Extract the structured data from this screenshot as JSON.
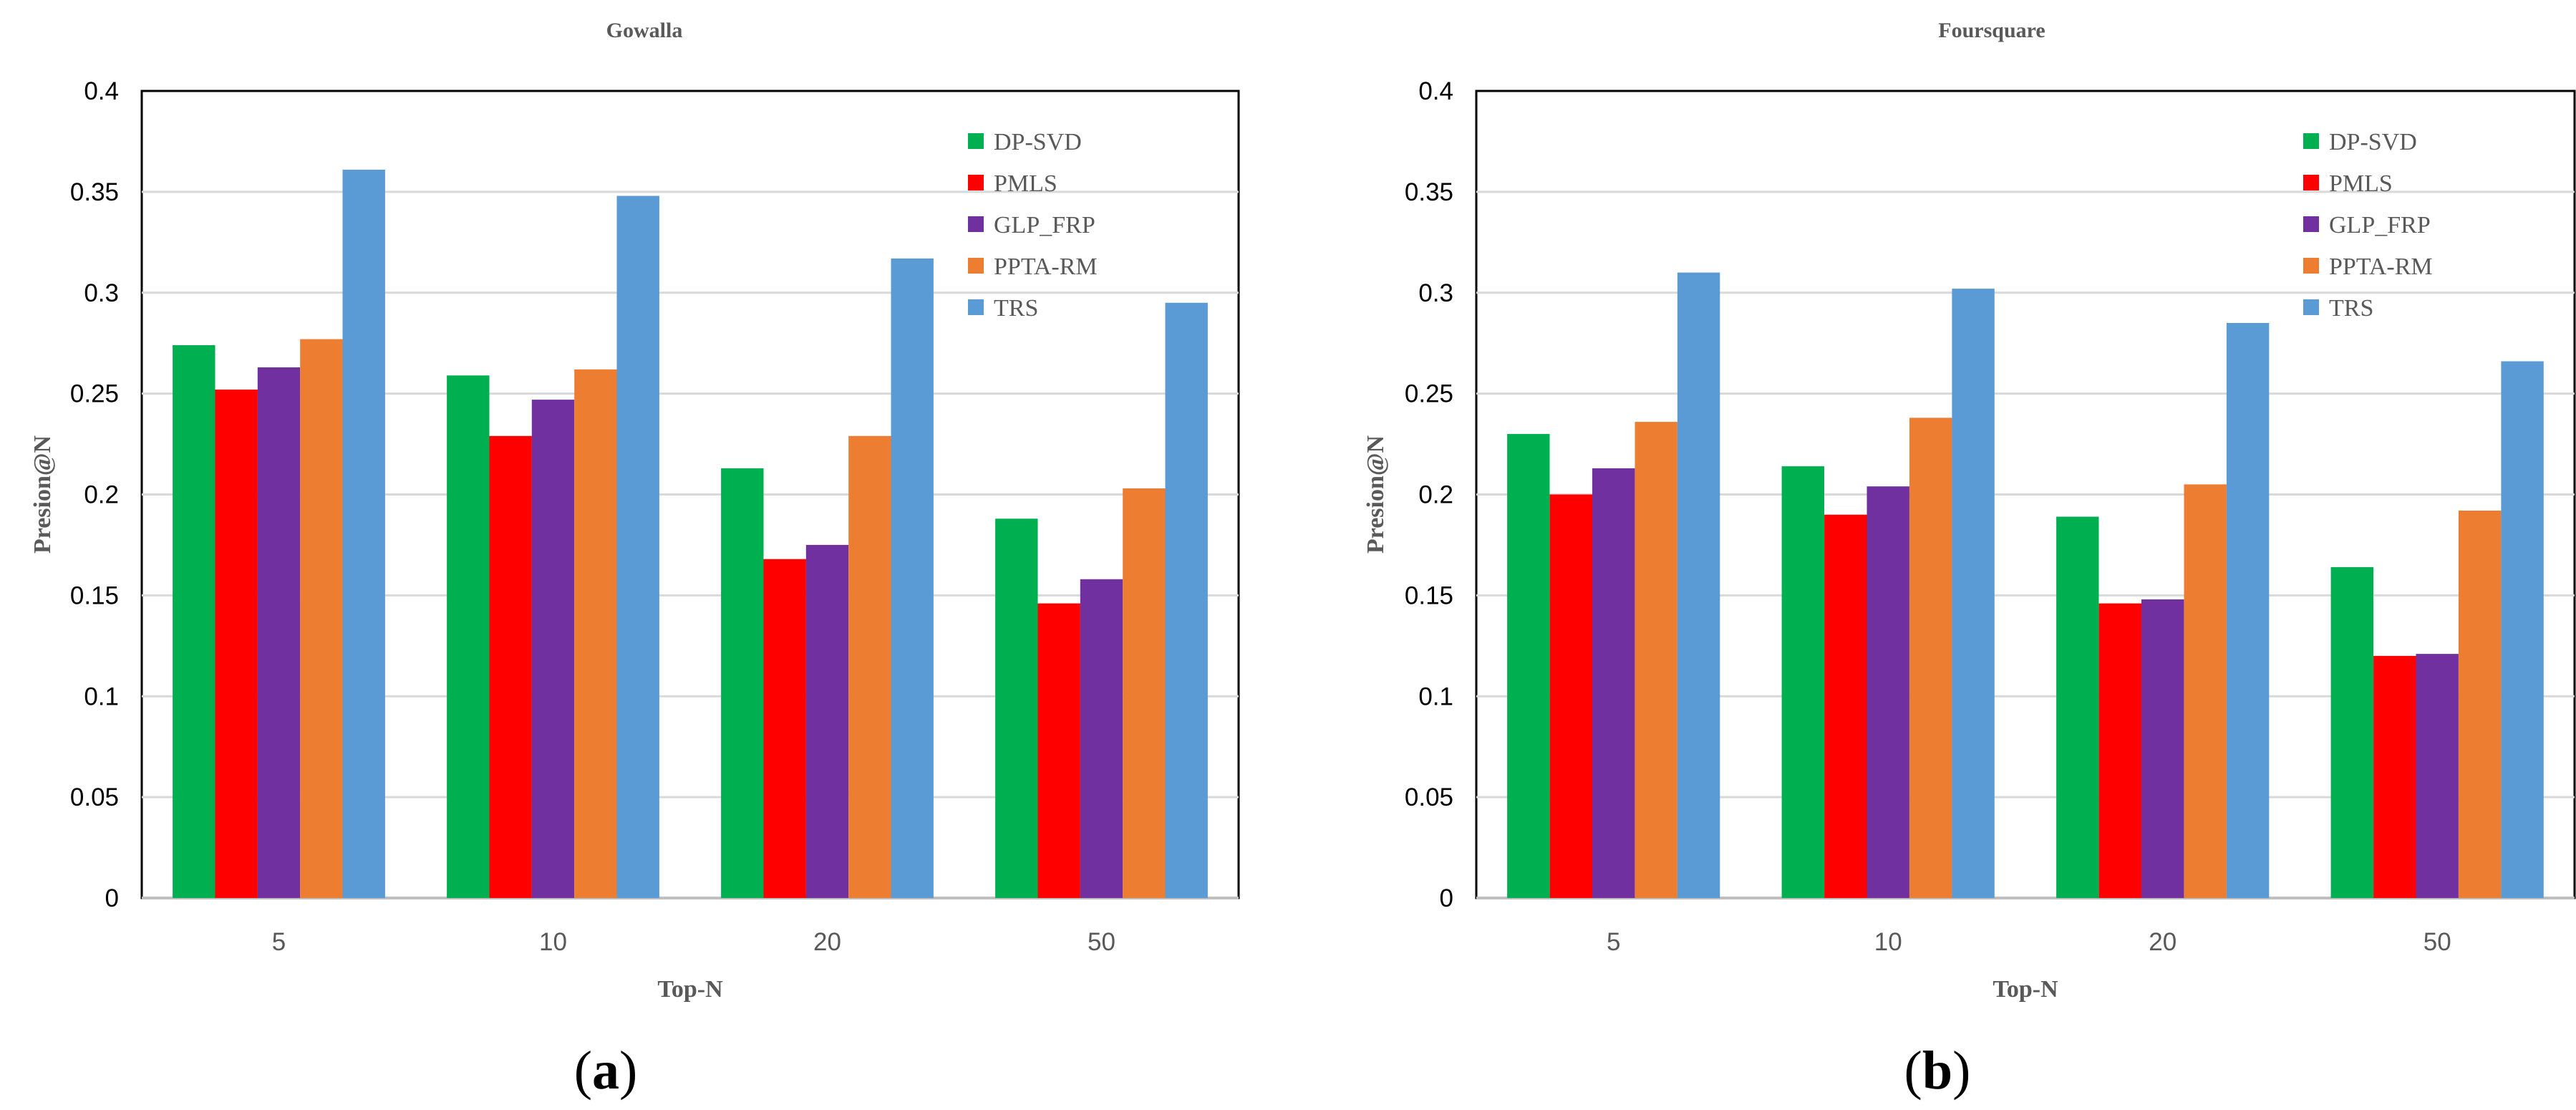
{
  "chart_data": [
    {
      "type": "bar",
      "title": "Gowalla",
      "xlabel": "Top-N",
      "ylabel": "Presion@N",
      "ylim": [
        0,
        0.4
      ],
      "yticks": [
        "0",
        "0.05",
        "0.1",
        "0.15",
        "0.2",
        "0.25",
        "0.3",
        "0.35",
        "0.4"
      ],
      "grid": true,
      "legend_position": "top-right",
      "categories": [
        "5",
        "10",
        "20",
        "50"
      ],
      "series": [
        {
          "name": "DP-SVD",
          "color": "#00b050",
          "values": [
            0.274,
            0.259,
            0.213,
            0.188
          ]
        },
        {
          "name": "PMLS",
          "color": "#ff0000",
          "values": [
            0.252,
            0.229,
            0.168,
            0.146
          ]
        },
        {
          "name": "GLP_FRP",
          "color": "#7030a0",
          "values": [
            0.263,
            0.247,
            0.175,
            0.158
          ]
        },
        {
          "name": "PPTA-RM",
          "color": "#ed7d31",
          "values": [
            0.277,
            0.262,
            0.229,
            0.203
          ]
        },
        {
          "name": "TRS",
          "color": "#5b9bd5",
          "values": [
            0.361,
            0.348,
            0.317,
            0.295
          ]
        }
      ],
      "panel_label": "a"
    },
    {
      "type": "bar",
      "title": "Foursquare",
      "xlabel": "Top-N",
      "ylabel": "Presion@N",
      "ylim": [
        0,
        0.4
      ],
      "yticks": [
        "0",
        "0.05",
        "0.1",
        "0.15",
        "0.2",
        "0.25",
        "0.3",
        "0.35",
        "0.4"
      ],
      "grid": true,
      "legend_position": "top-right",
      "categories": [
        "5",
        "10",
        "20",
        "50"
      ],
      "series": [
        {
          "name": "DP-SVD",
          "color": "#00b050",
          "values": [
            0.23,
            0.214,
            0.189,
            0.164
          ]
        },
        {
          "name": "PMLS",
          "color": "#ff0000",
          "values": [
            0.2,
            0.19,
            0.146,
            0.12
          ]
        },
        {
          "name": "GLP_FRP",
          "color": "#7030a0",
          "values": [
            0.213,
            0.204,
            0.148,
            0.121
          ]
        },
        {
          "name": "PPTA-RM",
          "color": "#ed7d31",
          "values": [
            0.236,
            0.238,
            0.205,
            0.192
          ]
        },
        {
          "name": "TRS",
          "color": "#5b9bd5",
          "values": [
            0.31,
            0.302,
            0.285,
            0.266
          ]
        }
      ],
      "panel_label": "b"
    }
  ]
}
